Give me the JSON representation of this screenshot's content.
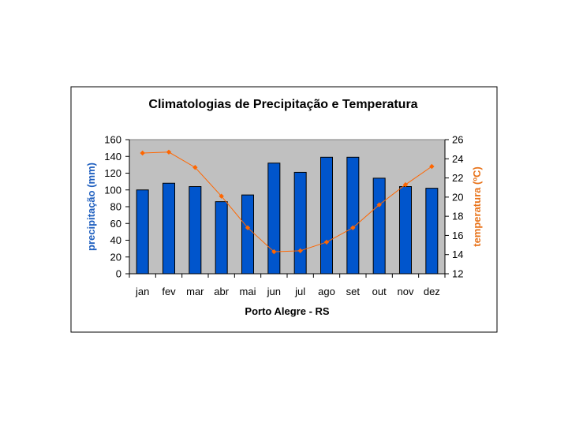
{
  "chart_data": {
    "type": "bar+line",
    "title": "Climatologias de Precipitação e Temperatura",
    "xlabel": "Porto Alegre - RS",
    "ylabel_left": "precipitação (mm)",
    "ylabel_right": "temperatura (ºC)",
    "categories": [
      "jan",
      "fev",
      "mar",
      "abr",
      "mai",
      "jun",
      "jul",
      "ago",
      "set",
      "out",
      "nov",
      "dez"
    ],
    "series": [
      {
        "name": "precipitação",
        "type": "bar",
        "axis": "left",
        "values": [
          100,
          108,
          104,
          86,
          94,
          132,
          121,
          139,
          139,
          114,
          104,
          102
        ]
      },
      {
        "name": "temperatura",
        "type": "line",
        "axis": "right",
        "values": [
          24.6,
          24.7,
          23.1,
          20.1,
          16.8,
          14.3,
          14.4,
          15.3,
          16.8,
          19.2,
          21.3,
          23.2
        ]
      }
    ],
    "ylim_left": [
      0,
      160
    ],
    "yticks_left": [
      "0",
      "20",
      "40",
      "60",
      "80",
      "100",
      "120",
      "140",
      "160"
    ],
    "ylim_right": [
      12,
      26
    ],
    "yticks_right": [
      "12",
      "14",
      "16",
      "18",
      "20",
      "22",
      "24",
      "26"
    ],
    "colors": {
      "bar": "#0055cc",
      "line": "#ff6600",
      "plot_bg": "#c0c0c0",
      "left_label": "#1f5fbf",
      "right_label": "#e8731a"
    }
  }
}
